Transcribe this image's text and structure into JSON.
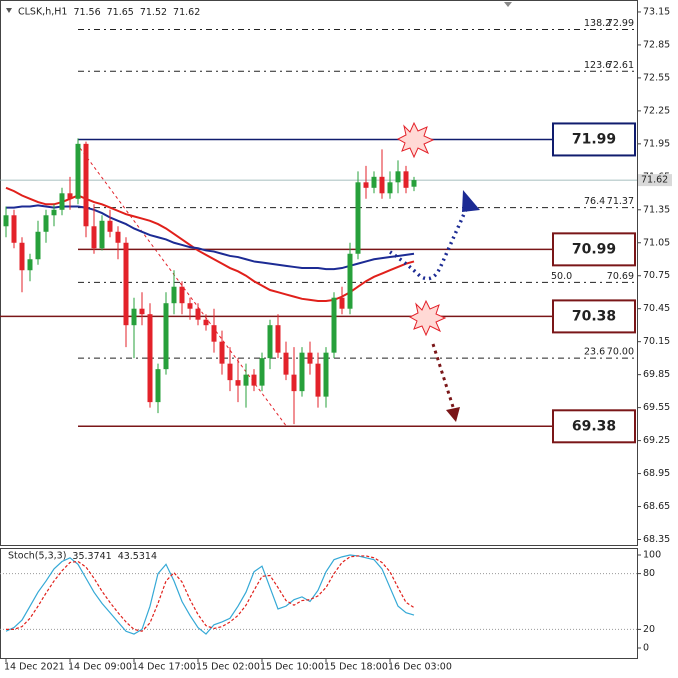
{
  "chart_data": [
    {
      "type": "candlestick",
      "title": "CLSK,h,H1",
      "header_values": [
        71.56,
        71.65,
        71.52,
        71.62
      ],
      "categories": [
        "14 Dec 2021",
        null,
        null,
        null,
        null,
        null,
        null,
        null,
        "14 Dec 09:00",
        null,
        null,
        null,
        null,
        null,
        null,
        null,
        "14 Dec 17:00",
        null,
        null,
        null,
        null,
        null,
        null,
        null,
        "15 Dec 02:00",
        null,
        null,
        null,
        null,
        null,
        null,
        null,
        "15 Dec 10:00",
        null,
        null,
        null,
        null,
        null,
        null,
        null,
        "15 Dec 18:00",
        null,
        null,
        null,
        null,
        null,
        null,
        null,
        "16 Dec 03:00",
        null,
        null,
        null
      ],
      "open": [
        71.2,
        71.3,
        71.05,
        70.8,
        70.9,
        71.15,
        71.3,
        71.35,
        71.5,
        71.45,
        71.95,
        71.2,
        71.0,
        71.25,
        71.15,
        71.05,
        70.3,
        70.45,
        70.4,
        69.6,
        69.9,
        70.5,
        70.65,
        70.5,
        70.45,
        70.35,
        70.3,
        70.15,
        69.95,
        69.8,
        69.75,
        69.85,
        69.75,
        70.0,
        70.3,
        70.05,
        69.85,
        69.7,
        70.05,
        69.95,
        69.65,
        70.05,
        70.55,
        70.45,
        70.95,
        71.6,
        71.55,
        71.65,
        71.5,
        71.6,
        71.7,
        71.56
      ],
      "high": [
        71.38,
        71.35,
        71.1,
        70.95,
        71.25,
        71.35,
        71.4,
        71.55,
        71.65,
        72.0,
        71.97,
        71.4,
        71.3,
        71.35,
        71.2,
        71.1,
        70.55,
        70.6,
        70.5,
        69.95,
        70.6,
        70.8,
        70.7,
        70.55,
        70.5,
        70.4,
        70.45,
        70.25,
        70.1,
        70.0,
        69.95,
        69.9,
        70.05,
        70.35,
        70.4,
        70.15,
        70.1,
        70.1,
        70.15,
        70.05,
        70.1,
        70.6,
        70.65,
        71.05,
        71.7,
        71.75,
        71.7,
        71.9,
        71.7,
        71.8,
        71.75,
        71.65
      ],
      "low": [
        71.1,
        71.0,
        70.6,
        70.7,
        70.85,
        71.05,
        71.2,
        71.3,
        71.35,
        71.4,
        71.1,
        70.95,
        70.98,
        71.1,
        70.9,
        70.1,
        70.0,
        70.3,
        69.55,
        69.5,
        69.85,
        70.4,
        70.4,
        70.35,
        70.3,
        70.25,
        70.05,
        69.85,
        69.7,
        69.6,
        69.55,
        69.7,
        69.7,
        69.9,
        70.0,
        69.8,
        69.4,
        69.65,
        69.85,
        69.55,
        69.55,
        70.0,
        70.4,
        70.4,
        70.9,
        71.45,
        71.5,
        71.45,
        71.45,
        71.5,
        71.5,
        71.52
      ],
      "close": [
        71.3,
        71.05,
        70.8,
        70.9,
        71.15,
        71.3,
        71.35,
        71.5,
        71.45,
        71.95,
        71.2,
        71.0,
        71.25,
        71.15,
        71.05,
        70.3,
        70.45,
        70.4,
        69.6,
        69.9,
        70.5,
        70.65,
        70.5,
        70.45,
        70.35,
        70.3,
        70.15,
        69.95,
        69.8,
        69.75,
        69.85,
        69.75,
        70.0,
        70.3,
        70.05,
        69.85,
        69.7,
        70.05,
        69.95,
        69.65,
        70.05,
        70.55,
        70.45,
        70.95,
        71.6,
        71.55,
        71.65,
        71.5,
        71.6,
        71.7,
        71.55,
        71.62
      ],
      "up_color": "#27a03b",
      "down_color": "#e3222a",
      "moving_averages": [
        {
          "color": "#e0201b",
          "values": [
            71.55,
            71.52,
            71.48,
            71.45,
            71.42,
            71.4,
            71.4,
            71.42,
            71.45,
            71.48,
            71.45,
            71.42,
            71.4,
            71.37,
            71.34,
            71.31,
            71.29,
            71.27,
            71.25,
            71.22,
            71.18,
            71.13,
            71.08,
            71.03,
            70.98,
            70.94,
            70.9,
            70.86,
            70.82,
            70.79,
            70.75,
            70.7,
            70.66,
            70.62,
            70.6,
            70.58,
            70.56,
            70.54,
            70.53,
            70.52,
            70.52,
            70.53,
            70.56,
            70.6,
            70.65,
            70.7,
            70.74,
            70.77,
            70.8,
            70.83,
            70.86,
            70.88
          ]
        },
        {
          "color": "#1c2b94",
          "values": [
            71.37,
            71.37,
            71.38,
            71.38,
            71.39,
            71.38,
            71.37,
            71.38,
            71.38,
            71.38,
            71.37,
            71.35,
            71.32,
            71.28,
            71.25,
            71.22,
            71.18,
            71.15,
            71.12,
            71.1,
            71.08,
            71.05,
            71.03,
            71.01,
            71.0,
            70.98,
            70.97,
            70.95,
            70.93,
            70.92,
            70.9,
            70.88,
            70.87,
            70.86,
            70.85,
            70.84,
            70.83,
            70.82,
            70.82,
            70.82,
            70.81,
            70.81,
            70.82,
            70.84,
            70.86,
            70.88,
            70.9,
            70.91,
            70.92,
            70.93,
            70.94,
            70.95
          ]
        }
      ],
      "ylim": [
        68.3,
        73.26
      ],
      "yticks": [
        73.15,
        72.85,
        72.55,
        72.25,
        71.95,
        71.65,
        71.35,
        71.05,
        70.75,
        70.45,
        70.15,
        69.85,
        69.55,
        69.25,
        68.95,
        68.65,
        68.35
      ],
      "last_price": 71.62,
      "levels": {
        "values": [
          71.99,
          70.99,
          70.38,
          69.38
        ],
        "colors": [
          "#101c6e",
          "#7a1618",
          "#7a1618",
          "#7a1618"
        ]
      },
      "fib_levels": {
        "ratios": [
          "138.2",
          "123.6",
          "76.4",
          "50.0",
          "23.6"
        ],
        "values": [
          72.99,
          72.61,
          71.37,
          70.69,
          70
        ],
        "value_labels": [
          "72.99",
          "72.61",
          "71.37",
          "70.69",
          "70.00"
        ]
      }
    },
    {
      "type": "line",
      "title": "Stoch(5,3,3)",
      "header_values": [
        35.3741,
        43.5314
      ],
      "series": [
        {
          "color": "#35a9d6",
          "dash": false,
          "values": [
            18,
            22,
            30,
            45,
            60,
            72,
            85,
            93,
            97,
            90,
            75,
            60,
            48,
            38,
            28,
            18,
            15,
            20,
            45,
            80,
            90,
            72,
            50,
            35,
            22,
            15,
            25,
            28,
            32,
            45,
            60,
            82,
            88,
            65,
            42,
            45,
            52,
            55,
            50,
            62,
            82,
            95,
            98,
            100,
            99,
            97,
            95,
            85,
            65,
            45,
            38,
            35.3741
          ]
        },
        {
          "color": "#e0201b",
          "dash": true,
          "values": [
            20,
            20,
            23,
            32,
            45,
            59,
            72,
            83,
            92,
            93,
            87,
            75,
            61,
            49,
            38,
            28,
            20,
            18,
            27,
            48,
            72,
            81,
            71,
            52,
            36,
            24,
            21,
            23,
            28,
            35,
            46,
            62,
            77,
            78,
            65,
            51,
            46,
            51,
            52,
            56,
            65,
            80,
            92,
            98,
            99,
            99,
            97,
            92,
            82,
            65,
            49,
            43.5314
          ]
        }
      ],
      "ylim": [
        0,
        100
      ],
      "yticks": [
        100,
        80,
        20,
        0
      ],
      "levels": [
        80,
        20
      ]
    }
  ]
}
